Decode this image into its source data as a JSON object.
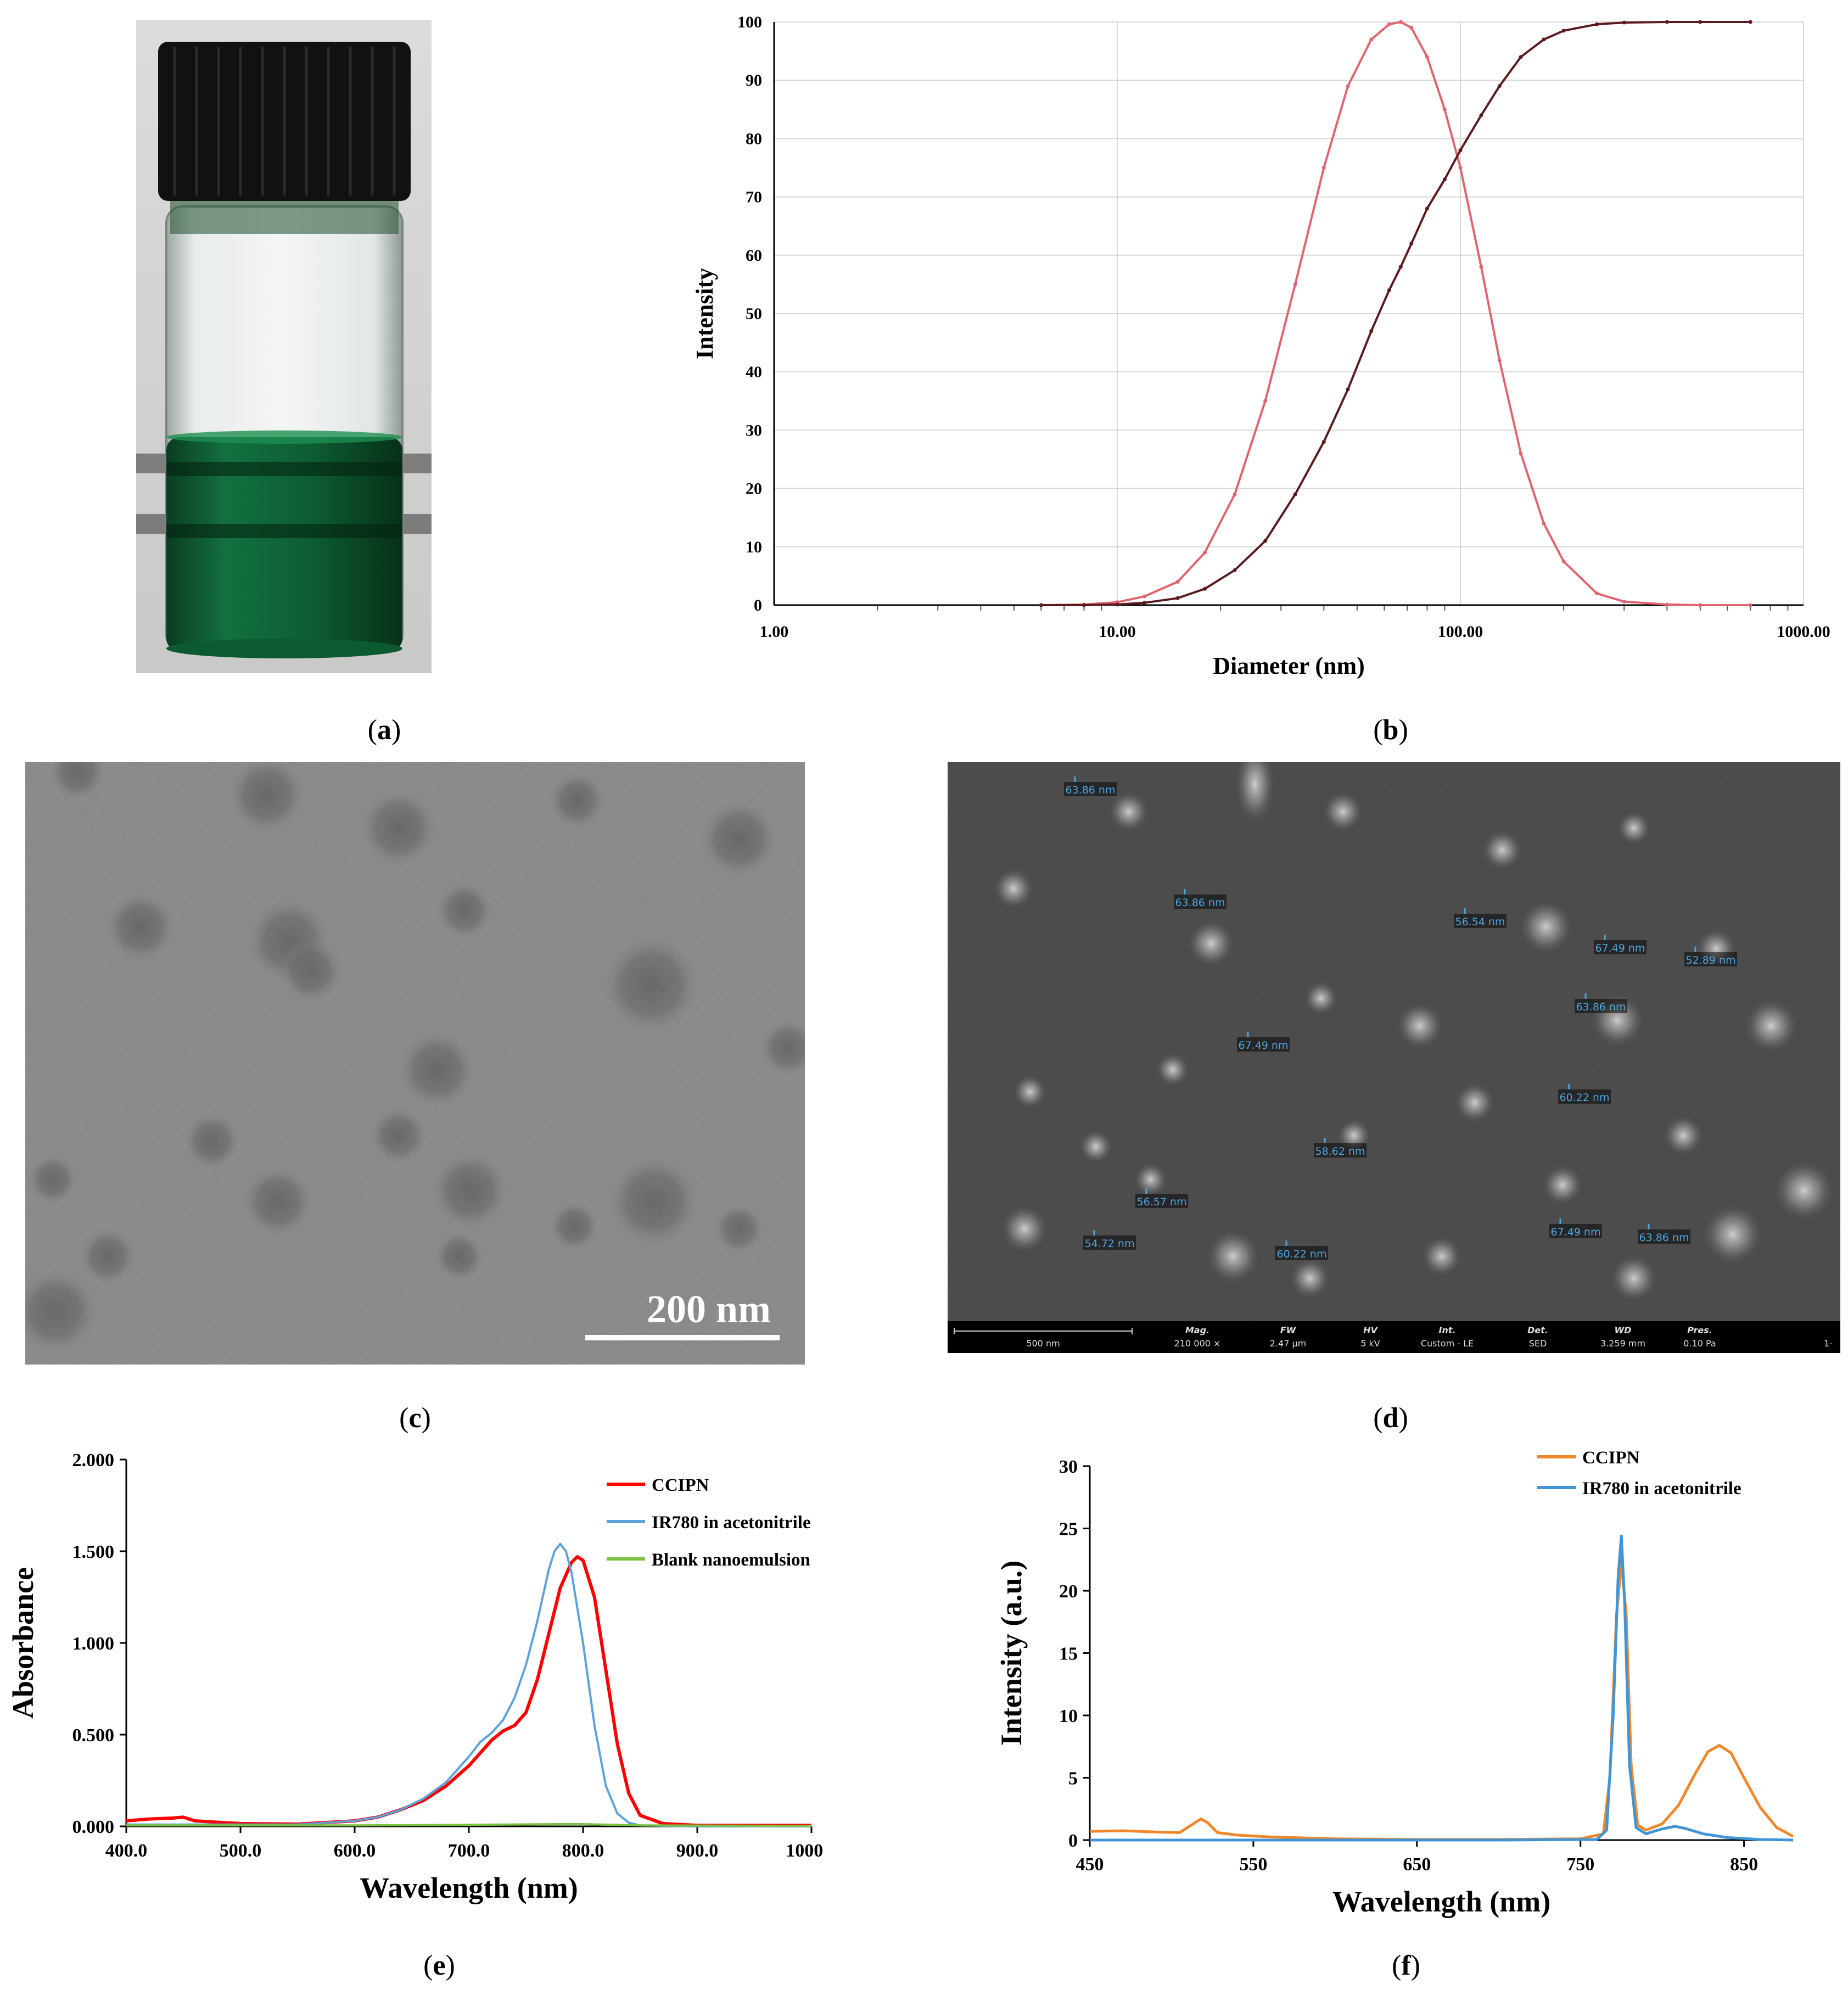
{
  "captions": {
    "a": "a",
    "b": "b",
    "c": "c",
    "d": "d",
    "e": "e",
    "f": "f"
  },
  "colors": {
    "vial_cap": "#111111",
    "vial_liquid": "#0f6a3a",
    "dls_curve": "#e06470",
    "cum_curve": "#5a1a1e",
    "ccipn_e": "#ff0000",
    "ir780_e": "#5ba3d9",
    "blank_e": "#7cc242",
    "ccipn_f": "#f0882a",
    "ir780_f": "#3f95d6",
    "sem_label": "#4ea6e0"
  },
  "tem": {
    "scale_label": "200 nm"
  },
  "sem": {
    "labels": [
      "63.86 nm",
      "63.86 nm",
      "56.54 nm",
      "67.49 nm",
      "52.89 nm",
      "63.86 nm",
      "67.49 nm",
      "60.22 nm",
      "58.62 nm",
      "56.57 nm",
      "54.72 nm",
      "60.22 nm",
      "63.86 nm",
      "67.49 nm"
    ],
    "info_bar": {
      "scale": "500 nm",
      "headers": [
        "Mag.",
        "FW",
        "HV",
        "Int.",
        "Det.",
        "WD",
        "Pres."
      ],
      "values": [
        "210 000 ×",
        "2.47 µm",
        "5 kV",
        "Custom - LE",
        "SED",
        "3.259 mm",
        "0.10 Pa"
      ],
      "tail": "1-"
    }
  },
  "chart_data": [
    {
      "panel": "b",
      "type": "line",
      "xscale": "log",
      "xlabel": "Diameter (nm)",
      "ylabel": "Intensity",
      "xlim": [
        1,
        1000
      ],
      "ylim": [
        0,
        100
      ],
      "xticks": [
        "1.00",
        "10.00",
        "100.00",
        "1000.00"
      ],
      "yticks": [
        "0",
        "10",
        "20",
        "30",
        "40",
        "50",
        "60",
        "70",
        "80",
        "90",
        "100"
      ],
      "grid": true,
      "series": [
        {
          "x": [
            6,
            8,
            10,
            12,
            15,
            18,
            22,
            27,
            33,
            40,
            47,
            55,
            62,
            67,
            72,
            80,
            90,
            100,
            115,
            130,
            150,
            175,
            200,
            250,
            300,
            400,
            500,
            700
          ],
          "y": [
            0,
            0.1,
            0.5,
            1.5,
            4,
            9,
            19,
            35,
            55,
            75,
            89,
            97,
            99.6,
            100,
            99,
            94,
            85,
            75,
            58,
            42,
            26,
            14,
            7.5,
            2,
            0.6,
            0.1,
            0,
            0
          ]
        },
        {
          "x": [
            6,
            8,
            10,
            12,
            15,
            18,
            22,
            27,
            33,
            40,
            47,
            55,
            62,
            67,
            72,
            80,
            90,
            100,
            115,
            130,
            150,
            175,
            200,
            250,
            300,
            400,
            500,
            700
          ],
          "y": [
            0,
            0,
            0.1,
            0.4,
            1.2,
            2.8,
            6,
            11,
            19,
            28,
            37,
            47,
            54,
            58,
            62,
            68,
            73,
            78,
            84,
            89,
            94,
            97,
            98.5,
            99.6,
            99.9,
            100,
            100,
            100
          ]
        }
      ]
    },
    {
      "panel": "e",
      "type": "line",
      "xlabel": "Wavelength (nm)",
      "ylabel": "Absorbance",
      "xlim": [
        400,
        1000
      ],
      "ylim": [
        0,
        2
      ],
      "xticks": [
        "400.0",
        "500.0",
        "600.0",
        "700.0",
        "800.0",
        "900.0",
        "1000.0"
      ],
      "yticks": [
        "0.000",
        "0.500",
        "1.000",
        "1.500",
        "2.000"
      ],
      "grid": false,
      "series": [
        {
          "name": "CCIPN",
          "x": [
            400,
            420,
            440,
            450,
            460,
            500,
            550,
            600,
            620,
            640,
            660,
            680,
            700,
            710,
            720,
            730,
            740,
            750,
            760,
            770,
            780,
            790,
            795,
            800,
            810,
            820,
            830,
            840,
            850,
            870,
            900,
            950,
            1000
          ],
          "y": [
            0.03,
            0.04,
            0.045,
            0.05,
            0.03,
            0.015,
            0.012,
            0.03,
            0.05,
            0.09,
            0.14,
            0.22,
            0.33,
            0.4,
            0.47,
            0.52,
            0.55,
            0.62,
            0.8,
            1.05,
            1.3,
            1.44,
            1.47,
            1.45,
            1.25,
            0.85,
            0.45,
            0.18,
            0.06,
            0.015,
            0.005,
            0.005,
            0.005
          ]
        },
        {
          "name": "IR780 in acetonitrile",
          "x": [
            400,
            450,
            500,
            550,
            600,
            620,
            640,
            660,
            680,
            700,
            710,
            720,
            730,
            740,
            750,
            760,
            770,
            775,
            780,
            785,
            790,
            800,
            810,
            820,
            830,
            840,
            850,
            900,
            1000
          ],
          "y": [
            0.01,
            0.01,
            0.01,
            0.01,
            0.03,
            0.05,
            0.09,
            0.15,
            0.24,
            0.38,
            0.46,
            0.51,
            0.58,
            0.7,
            0.88,
            1.12,
            1.4,
            1.5,
            1.54,
            1.5,
            1.38,
            1.0,
            0.55,
            0.22,
            0.07,
            0.02,
            0.005,
            0,
            0
          ]
        },
        {
          "name": "Blank nanoemulsion",
          "x": [
            400,
            600,
            700,
            780,
            800,
            850,
            1000
          ],
          "y": [
            0.005,
            0.005,
            0.008,
            0.012,
            0.012,
            0.005,
            0.002
          ]
        }
      ]
    },
    {
      "panel": "f",
      "type": "line",
      "xlabel": "Wavelength (nm)",
      "ylabel": "Intensity (a.u.)",
      "xlim": [
        450,
        880
      ],
      "ylim": [
        0,
        30
      ],
      "xticks": [
        "450",
        "550",
        "650",
        "750",
        "850"
      ],
      "yticks": [
        "0",
        "5",
        "10",
        "15",
        "20",
        "25",
        "30"
      ],
      "grid": false,
      "series": [
        {
          "name": "CCIPN",
          "x": [
            450,
            470,
            490,
            505,
            512,
            518,
            522,
            528,
            540,
            560,
            600,
            650,
            700,
            750,
            764,
            768,
            772,
            775,
            778,
            781,
            785,
            790,
            800,
            810,
            820,
            828,
            835,
            842,
            850,
            860,
            870,
            880
          ],
          "y": [
            0.7,
            0.75,
            0.65,
            0.6,
            1.2,
            1.7,
            1.4,
            0.6,
            0.4,
            0.25,
            0.1,
            0.05,
            0.05,
            0.1,
            0.5,
            5,
            18,
            22.3,
            18,
            6,
            1.2,
            0.8,
            1.3,
            2.8,
            5.3,
            7.1,
            7.6,
            7.0,
            5.0,
            2.6,
            1.0,
            0.3
          ]
        },
        {
          "name": "IR780 in acetonitrile",
          "x": [
            450,
            500,
            600,
            700,
            760,
            766,
            770,
            773,
            775,
            777,
            780,
            784,
            790,
            800,
            808,
            815,
            825,
            840,
            860,
            880
          ],
          "y": [
            0,
            0,
            0,
            0,
            0.05,
            0.8,
            10,
            21,
            24.4,
            19,
            6,
            1.0,
            0.5,
            0.9,
            1.1,
            0.9,
            0.5,
            0.2,
            0.05,
            0
          ]
        }
      ]
    }
  ]
}
